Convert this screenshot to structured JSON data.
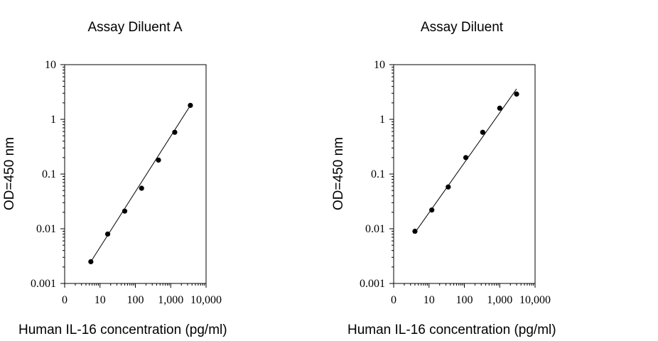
{
  "chart_data": [
    {
      "type": "scatter",
      "title": "Assay Diluent A",
      "xlabel": "Human IL-16 concentration (pg/ml)",
      "ylabel": "OD=450 nm",
      "xscale": "log",
      "yscale": "log",
      "xlim": [
        1,
        10000
      ],
      "ylim": [
        0.001,
        10
      ],
      "x_tick_labels": [
        "0",
        "10",
        "100",
        "1,000",
        "10,000"
      ],
      "y_tick_labels": [
        "10",
        "1",
        "0.1",
        "0.01",
        "0.001"
      ],
      "series": [
        {
          "x": [
            5.5,
            16.5,
            50,
            150,
            450,
            1300,
            3600
          ],
          "y": [
            0.0025,
            0.008,
            0.021,
            0.055,
            0.18,
            0.58,
            1.8
          ]
        }
      ],
      "fit_line": {
        "x": [
          5.5,
          3600
        ],
        "y": [
          0.0025,
          1.8
        ]
      }
    },
    {
      "type": "scatter",
      "title": "Assay Diluent",
      "xlabel": "Human IL-16 concentration (pg/ml)",
      "ylabel": "OD=450 nm",
      "xscale": "log",
      "yscale": "log",
      "xlim": [
        1,
        10000
      ],
      "ylim": [
        0.001,
        10
      ],
      "x_tick_labels": [
        "0",
        "10",
        "100",
        "1,000",
        "10,000"
      ],
      "y_tick_labels": [
        "10",
        "1",
        "0.1",
        "0.01",
        "0.001"
      ],
      "series": [
        {
          "x": [
            4,
            12,
            35,
            110,
            330,
            1000,
            3000
          ],
          "y": [
            0.009,
            0.022,
            0.058,
            0.2,
            0.58,
            1.6,
            2.9
          ]
        }
      ],
      "fit_line": {
        "x": [
          4,
          3000
        ],
        "y": [
          0.0085,
          3.6
        ]
      }
    }
  ]
}
